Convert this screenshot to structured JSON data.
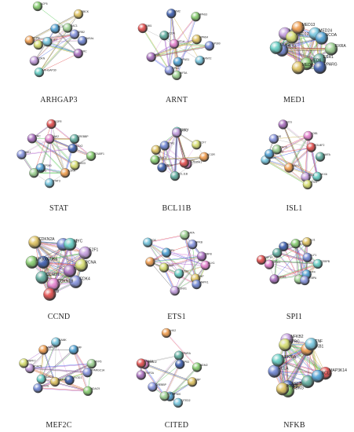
{
  "panels": [
    {
      "id": "arhgap3",
      "caption": "ARHGAP3",
      "labels": [
        "ACP5",
        "RBCK",
        "RASAL",
        "ARHGAP30",
        "CDKN",
        "PTK2",
        "PTPN",
        "SHC1",
        "BCAR1",
        "RAC1",
        "GRB2",
        "SRC"
      ]
    },
    {
      "id": "arnt",
      "caption": "ARNT",
      "labels": [
        "ARNT2",
        "NPAS1",
        "HIF3A",
        "EPAS",
        "AHR",
        "HIF1A",
        "SIM1",
        "NCOA",
        "SIM2",
        "NPAS3",
        "NPAS4",
        "EP300"
      ]
    },
    {
      "id": "med1",
      "caption": "MED1",
      "labels": [
        "ESR1",
        "PPARG",
        "MED6",
        "MED4",
        "MED1",
        "CDK8",
        "MED17",
        "MED12",
        "MED13",
        "MED24",
        "NCOA",
        "RXRA"
      ]
    },
    {
      "id": "stat",
      "caption": "STAT",
      "labels": [
        "PIAS3",
        "IL2RA",
        "STAT3",
        "EP300",
        "NANOG",
        "JAK1",
        "SRC",
        "JAK2",
        "EGFR",
        "CREBBP",
        "SOX2",
        "POU5F1"
      ]
    },
    {
      "id": "bcl11b",
      "caption": "BCL11B",
      "labels": [
        "SUV39H1",
        "SIRT1",
        "BCL11B",
        "MBD3",
        "HDAC1",
        "CHD4",
        "MTA1",
        "RBBP4",
        "GATA3",
        "TCF7",
        "NCOR"
      ]
    },
    {
      "id": "isl1",
      "caption": "ISL1",
      "labels": [
        "NKX6",
        "ISL1",
        "LHX3",
        "MNX1",
        "PDX1",
        "NEUROD",
        "PHOX",
        "INS",
        "GCG",
        "LDB1",
        "POU4F2",
        "MAFA"
      ]
    },
    {
      "id": "ccnd",
      "caption": "CCND",
      "labels": [
        "CDK4",
        "ESR1",
        "CDKN1B",
        "RB",
        "CCND1",
        "CDK6",
        "EP300",
        "CDKN2A",
        "CDK2",
        "MYC",
        "E2F1",
        "PCNA"
      ]
    },
    {
      "id": "ets1",
      "caption": "ETS1",
      "labels": [
        "CBP",
        "MAPK1",
        "ETS1",
        "RUNX1",
        "PAX5",
        "JUN",
        "FOS",
        "SP1",
        "GATA",
        "NFKB",
        "CBFB",
        "ELK1"
      ]
    },
    {
      "id": "spi1",
      "caption": "SPI1",
      "labels": [
        "IRF4",
        "SPI1",
        "CEBPA",
        "RUNX1",
        "GATA1",
        "CSF1R",
        "JUN",
        "IKZF1",
        "TAL1",
        "FLI1",
        "KLF1",
        "CEBPB"
      ]
    },
    {
      "id": "mef2c",
      "caption": "MEF2C",
      "labels": [
        "MYOD1",
        "HDAC9",
        "MEF2C",
        "MYOG",
        "HDAC4",
        "HDAC5",
        "MAPK7",
        "MAPK14",
        "CAMK",
        "SRF",
        "MYF5",
        "PPARGC1A"
      ]
    },
    {
      "id": "cited",
      "caption": "CITED",
      "labels": [
        "LHX2",
        "CITED2",
        "EP300",
        "HIF1A",
        "CREBBP",
        "TFAP2A",
        "SMAD2",
        "SMAD3",
        "PPARA",
        "TP53",
        "MDM2",
        "CBP"
      ]
    },
    {
      "id": "nfkb",
      "caption": "NFKB",
      "labels": [
        "MAP3K14",
        "CHUK",
        "RELB",
        "IKBKG",
        "IKBKB",
        "RELA",
        "NFKBIA",
        "NFKB2",
        "BTRC",
        "NFKB1",
        "TNF",
        "BCL3"
      ]
    }
  ],
  "colors": {
    "node_palette": [
      "#8fd07a",
      "#e45b5b",
      "#8f9be0",
      "#7fc9e0",
      "#c7a4e0",
      "#e0c66b",
      "#6bb3a6",
      "#b07ac4",
      "#5aa7d6",
      "#d9e07a",
      "#7a8fd6",
      "#4c6bb5",
      "#e58ad0",
      "#a4d49a",
      "#f0a35a",
      "#6fd0c7"
    ],
    "edge_palette": [
      "#444444",
      "#3b5ce8",
      "#e04444",
      "#3cbf3c",
      "#c0a02a",
      "#9b4cc4",
      "#b0b0b0",
      "#e0a0e0"
    ]
  }
}
